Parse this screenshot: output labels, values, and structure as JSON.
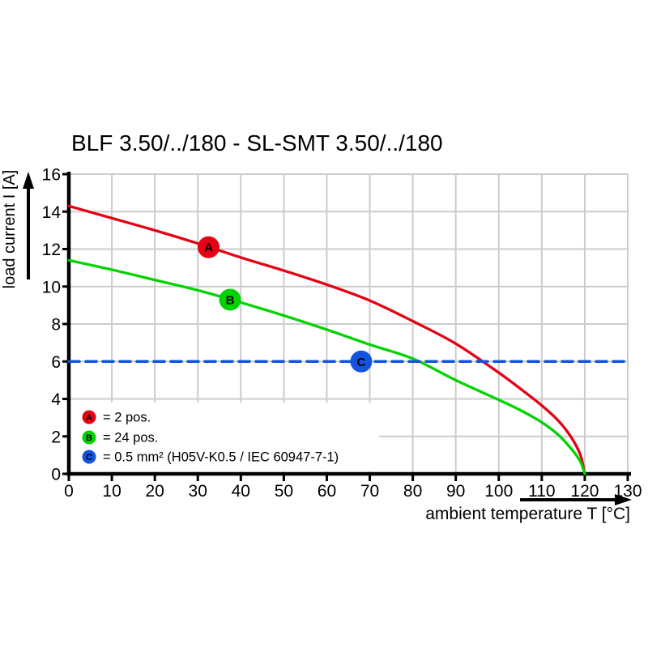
{
  "title": "BLF 3.50/../180 - SL-SMT 3.50/../180",
  "colors": {
    "grid": "#cccccc",
    "axis": "#000000",
    "series_a_red": "#e60014",
    "series_b_green": "#00d300",
    "series_c_blue": "#1353e0",
    "legend_background": "#ffffff",
    "marker_letter": "#ffffff"
  },
  "chart_data": {
    "type": "line",
    "title": "BLF 3.50/../180 - SL-SMT 3.50/../180",
    "xlabel": "ambient temperature T [°C]",
    "ylabel": "load current I [A]",
    "xlim": [
      0,
      130
    ],
    "ylim": [
      0,
      16
    ],
    "xticks": [
      0,
      10,
      20,
      30,
      40,
      50,
      60,
      70,
      80,
      90,
      100,
      110,
      120,
      130
    ],
    "yticks": [
      0,
      2,
      4,
      6,
      8,
      10,
      12,
      14,
      16
    ],
    "grid": true,
    "legend_position": "bottom-left",
    "series": [
      {
        "name": "A",
        "label": "= 2 pos.",
        "color": "#e60014",
        "style": "solid",
        "marker_at": [
          32.5,
          12.1
        ],
        "points": [
          [
            0,
            14.3
          ],
          [
            10,
            13.65
          ],
          [
            20,
            13.0
          ],
          [
            30,
            12.3
          ],
          [
            40,
            11.55
          ],
          [
            50,
            10.85
          ],
          [
            60,
            10.1
          ],
          [
            70,
            9.25
          ],
          [
            80,
            8.15
          ],
          [
            90,
            6.95
          ],
          [
            100,
            5.4
          ],
          [
            105,
            4.55
          ],
          [
            110,
            3.65
          ],
          [
            114,
            2.8
          ],
          [
            117,
            1.9
          ],
          [
            119,
            1.0
          ],
          [
            120,
            0
          ]
        ]
      },
      {
        "name": "B",
        "label": "= 24 pos.",
        "color": "#00d300",
        "style": "solid",
        "marker_at": [
          37.5,
          9.3
        ],
        "points": [
          [
            0,
            11.4
          ],
          [
            10,
            10.9
          ],
          [
            20,
            10.35
          ],
          [
            30,
            9.8
          ],
          [
            40,
            9.15
          ],
          [
            50,
            8.45
          ],
          [
            60,
            7.7
          ],
          [
            70,
            6.9
          ],
          [
            80,
            6.15
          ],
          [
            90,
            5.0
          ],
          [
            100,
            3.95
          ],
          [
            105,
            3.4
          ],
          [
            110,
            2.75
          ],
          [
            114,
            2.05
          ],
          [
            117,
            1.3
          ],
          [
            119,
            0.65
          ],
          [
            120,
            0
          ]
        ]
      },
      {
        "name": "C",
        "label": "= 0.5 mm² (H05V-K0.5 / IEC 60947-7-1)",
        "color": "#1353e0",
        "style": "dashed",
        "marker_at": [
          68,
          6
        ],
        "points": [
          [
            0,
            6
          ],
          [
            130,
            6
          ]
        ]
      }
    ]
  }
}
